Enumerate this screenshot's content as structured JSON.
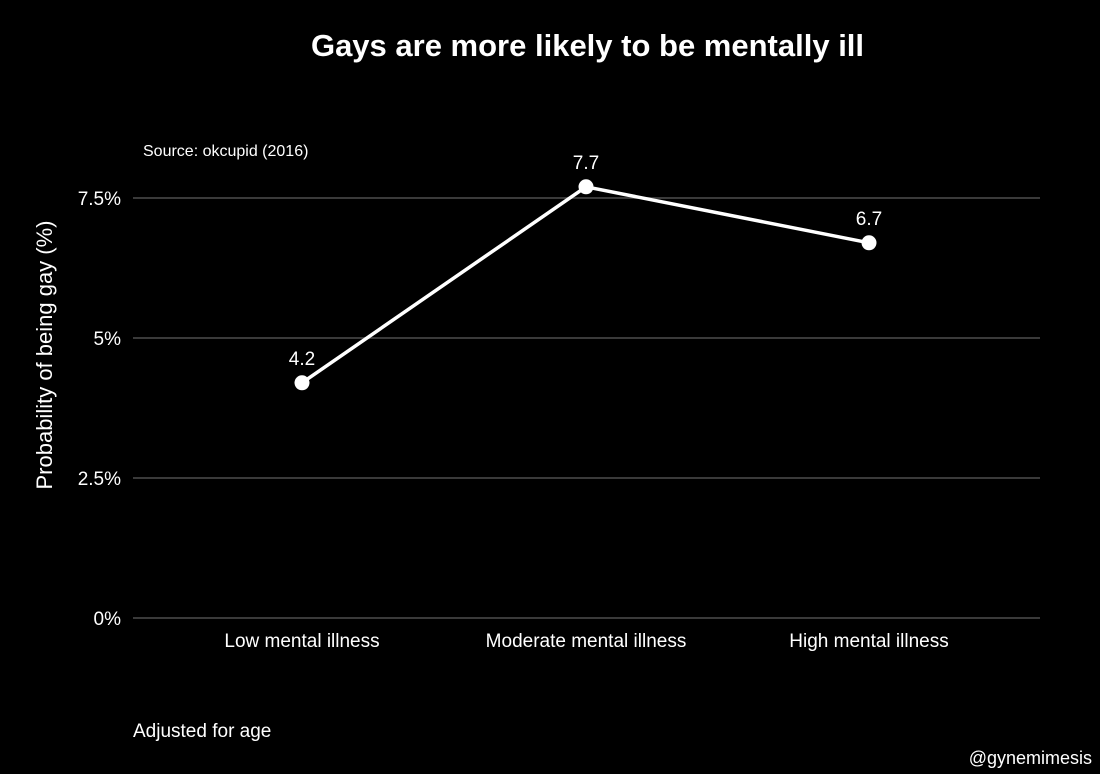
{
  "chart_data": {
    "type": "line",
    "title": "Gays are more likely to be mentally ill",
    "subtitle": "Source: okcupid (2016)",
    "caption": "Adjusted for age",
    "credit": "@gynemimesis",
    "xlabel": "",
    "ylabel": "Probability of being gay (%)",
    "categories": [
      "Low mental illness",
      "Moderate mental illness",
      "High mental illness"
    ],
    "series": [
      {
        "values": [
          4.2,
          7.7,
          6.7
        ],
        "labels": [
          "4.2",
          "7.7",
          "6.7"
        ]
      }
    ],
    "y_ticks": [
      0,
      2.5,
      5,
      7.5
    ],
    "y_tick_labels": [
      "0%",
      "2.5%",
      "5%",
      "7.5%"
    ],
    "ylim": [
      0,
      7.75
    ],
    "grid": "horizontal",
    "legend": "none",
    "colors": {
      "background": "#000000",
      "line": "#ffffff",
      "gridline": "#3a3a3a",
      "text": "#ffffff"
    }
  }
}
